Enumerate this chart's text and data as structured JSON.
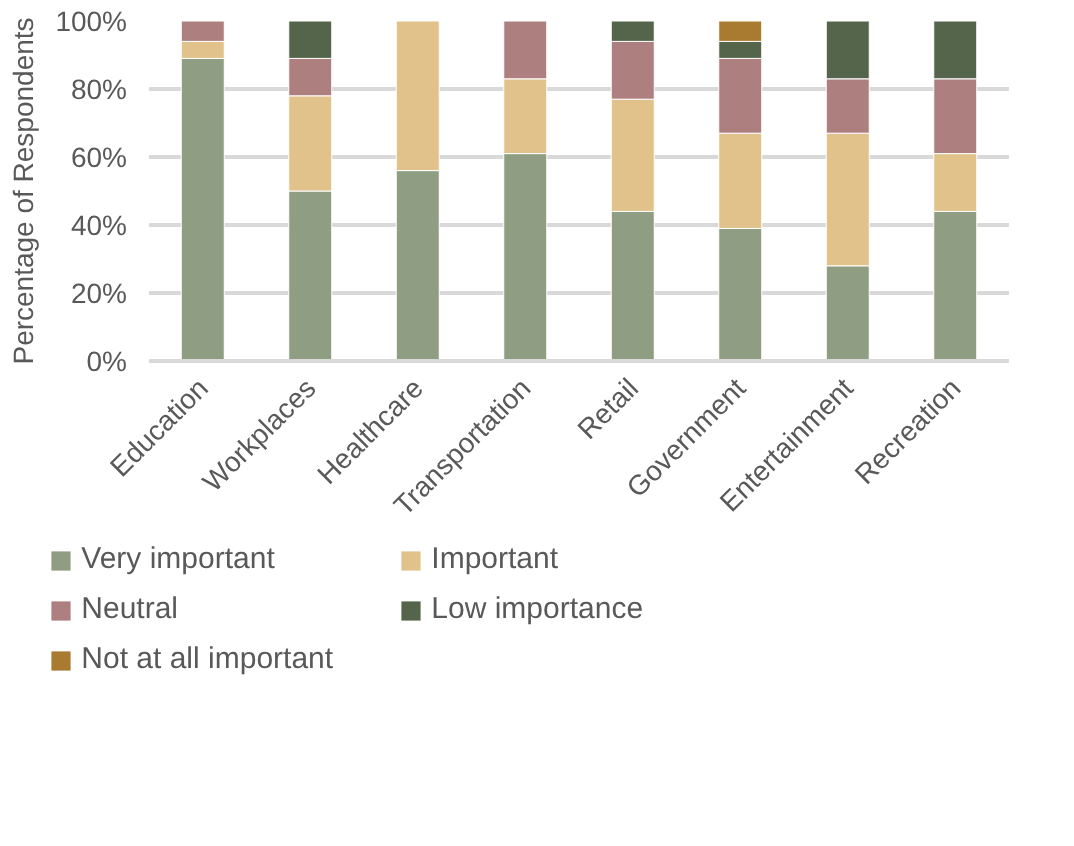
{
  "chart_data": {
    "type": "bar",
    "stacked": true,
    "ylabel": "Percentage of Respondents",
    "categories": [
      "Education",
      "Workplaces",
      "Healthcare",
      "Transportation",
      "Retail",
      "Government",
      "Entertainment",
      "Recreation"
    ],
    "series": [
      {
        "name": "Very important",
        "color": "#8f9e82",
        "values": [
          89,
          50,
          56,
          61,
          44,
          39,
          28,
          44
        ]
      },
      {
        "name": "Important",
        "color": "#e0c28a",
        "values": [
          5,
          28,
          44,
          22,
          33,
          28,
          39,
          17
        ]
      },
      {
        "name": "Neutral",
        "color": "#ad7f7e",
        "values": [
          6,
          11,
          0,
          17,
          17,
          22,
          16,
          22
        ]
      },
      {
        "name": "Low importance",
        "color": "#55654c",
        "values": [
          0,
          11,
          0,
          0,
          6,
          5,
          17,
          17
        ]
      },
      {
        "name": "Not at all important",
        "color": "#a87b30",
        "values": [
          0,
          0,
          0,
          0,
          0,
          6,
          0,
          0
        ]
      }
    ],
    "ylim": [
      0,
      100
    ],
    "yticks": [
      {
        "value": 0,
        "label": "0%"
      },
      {
        "value": 20,
        "label": "20%"
      },
      {
        "value": 40,
        "label": "40%"
      },
      {
        "value": 60,
        "label": "60%"
      },
      {
        "value": 80,
        "label": "80%"
      },
      {
        "value": 100,
        "label": "100%"
      }
    ],
    "grid": "y",
    "legend": "bottom"
  }
}
